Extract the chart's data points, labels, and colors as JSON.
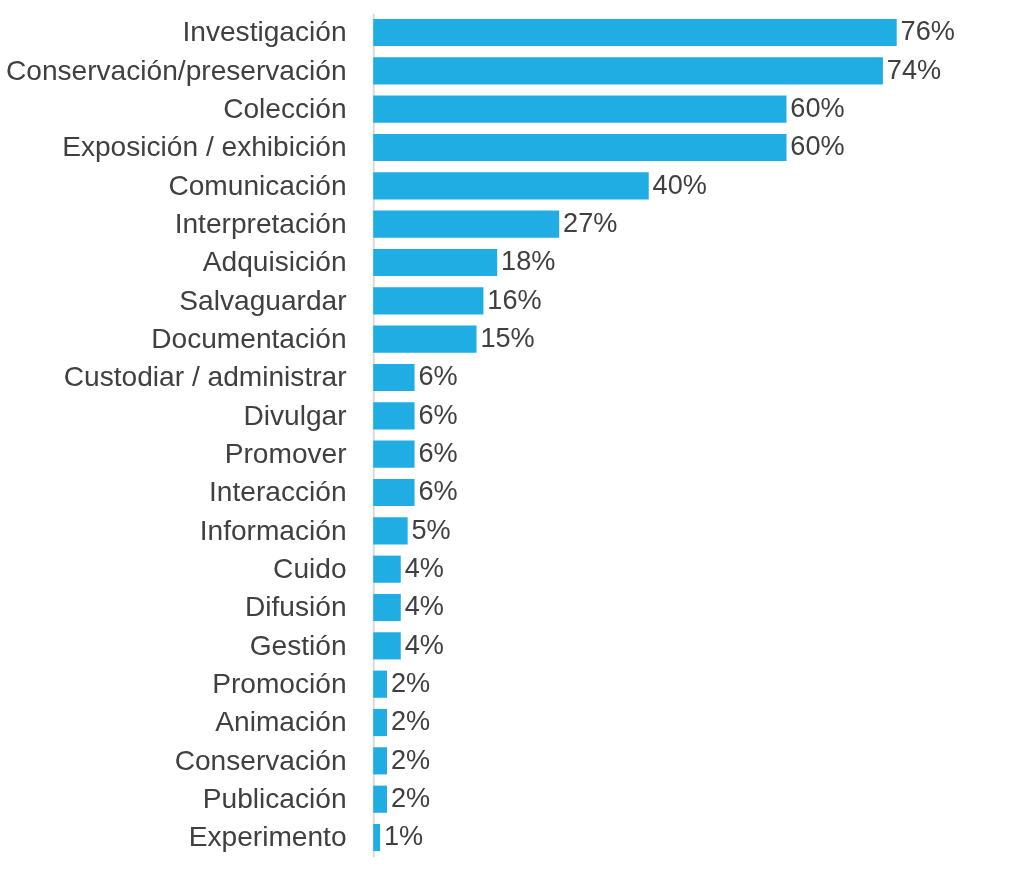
{
  "chart_data": {
    "type": "bar",
    "orientation": "horizontal",
    "categories": [
      "Investigación",
      "Conservación/preservación",
      "Colección",
      "Exposición / exhibición",
      "Comunicación",
      "Interpretación",
      "Adquisición",
      "Salvaguardar",
      "Documentación",
      "Custodiar / administrar",
      "Divulgar",
      "Promover",
      "Interacción",
      "Información",
      "Cuido",
      "Difusión",
      "Gestión",
      "Promoción",
      "Animación",
      "Conservación",
      "Publicación",
      "Experimento"
    ],
    "values": [
      76,
      74,
      60,
      60,
      40,
      27,
      18,
      16,
      15,
      6,
      6,
      6,
      6,
      5,
      4,
      4,
      4,
      2,
      2,
      2,
      2,
      1
    ],
    "value_labels": [
      "76%",
      "74%",
      "60%",
      "60%",
      "40%",
      "27%",
      "18%",
      "16%",
      "15%",
      "6%",
      "6%",
      "6%",
      "6%",
      "5%",
      "4%",
      "4%",
      "4%",
      "2%",
      "2%",
      "2%",
      "2%",
      "1%"
    ],
    "color": "#1fade4"
  }
}
